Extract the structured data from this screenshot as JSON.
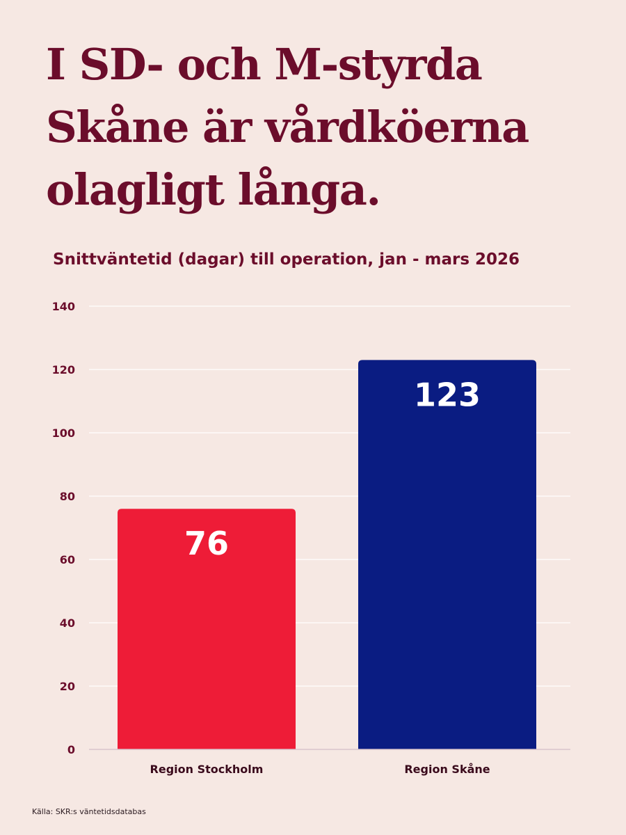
{
  "headline": {
    "lines": [
      "I SD- och M-styrda",
      "Skåne är vårdköerna",
      "olagligt långa."
    ]
  },
  "colors": {
    "background": "#f6e8e3",
    "title": "#6b0d2b",
    "stockholm_bar": "#ee1c37",
    "skane_bar": "#0a1c82",
    "gridline": "#ffffff"
  },
  "source": "Källa: SKR:s väntetidsdatabas",
  "chart_data": {
    "type": "bar",
    "title": "Snittväntetid (dagar) till operation, jan - mars 2026",
    "xlabel": "",
    "ylabel": "",
    "categories": [
      "Region Stockholm",
      "Region Skåne"
    ],
    "values": [
      76,
      123
    ],
    "data_labels": [
      "76",
      "123"
    ],
    "bar_colors": [
      "#ee1c37",
      "#0a1c82"
    ],
    "ylim": [
      0,
      140
    ],
    "yticks": [
      0,
      20,
      40,
      60,
      80,
      100,
      120,
      140
    ],
    "grid": true,
    "legend": "none"
  }
}
